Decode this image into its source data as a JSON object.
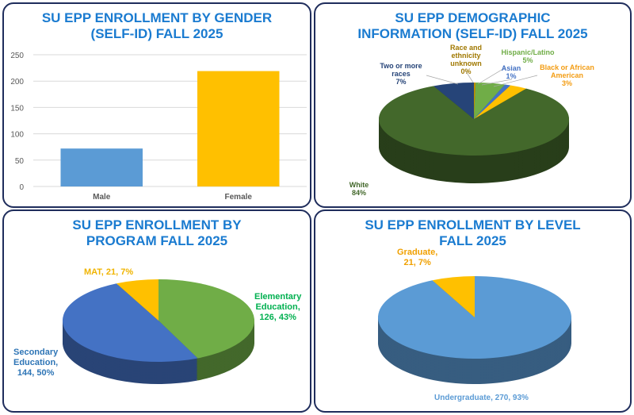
{
  "chart_data": [
    {
      "type": "bar",
      "title": "SU EPP ENROLLMENT BY GENDER (SELF-ID) FALL 2025",
      "categories": [
        "Male",
        "Female"
      ],
      "values": [
        72,
        219
      ],
      "ylim": [
        0,
        250
      ],
      "yticks": [
        "0",
        "50",
        "100",
        "150",
        "200",
        "250"
      ],
      "colors": [
        "#5b9bd5",
        "#ffc000"
      ],
      "grid": true
    },
    {
      "type": "pie",
      "title": "SU EPP DEMOGRAPHIC INFORMATION (SELF-ID) FALL 2025",
      "slices": [
        {
          "name": "Race and ethnicity unknown",
          "pct": "0%",
          "value": 0.3,
          "color": "#bf8f00"
        },
        {
          "name": "Hispanic/Latino",
          "pct": "5%",
          "value": 5,
          "color": "#70ad47"
        },
        {
          "name": "Asian",
          "pct": "1%",
          "value": 1,
          "color": "#4472c4"
        },
        {
          "name": "Black or African American",
          "pct": "3%",
          "value": 3,
          "color": "#ffc000"
        },
        {
          "name": "White",
          "pct": "84%",
          "value": 84,
          "color": "#43682b"
        },
        {
          "name": "Two or more races",
          "pct": "7%",
          "value": 7,
          "color": "#264478"
        }
      ]
    },
    {
      "type": "pie",
      "title": "SU EPP ENROLLMENT BY PROGRAM  FALL 2025",
      "slices": [
        {
          "name": "Elementary Education",
          "label": "Elementary Education, 126, 43%",
          "value": 126,
          "color": "#70ad47"
        },
        {
          "name": "Secondary Education",
          "label": "Secondary Education, 144, 50%",
          "value": 144,
          "color": "#4472c4"
        },
        {
          "name": "MAT",
          "label": "MAT, 21, 7%",
          "value": 21,
          "color": "#ffc000"
        }
      ]
    },
    {
      "type": "pie",
      "title": "SU EPP ENROLLMENT BY LEVEL FALL 2025",
      "slices": [
        {
          "name": "Undergraduate",
          "label": "Undergraduate, 270, 93%",
          "value": 270,
          "color": "#5b9bd5"
        },
        {
          "name": "Graduate",
          "label": "Graduate, 21, 7%",
          "value": 21,
          "color": "#ffc000"
        }
      ]
    }
  ],
  "titles": {
    "gender_l1": "SU EPP ENROLLMENT BY GENDER",
    "gender_l2": "(SELF-ID) FALL 2025",
    "demo_l1": "SU EPP DEMOGRAPHIC",
    "demo_l2": "INFORMATION (SELF-ID) FALL 2025",
    "prog_l1": "SU EPP ENROLLMENT BY",
    "prog_l2": "PROGRAM  FALL 2025",
    "level_l1": "SU EPP ENROLLMENT BY LEVEL",
    "level_l2": "FALL 2025"
  },
  "labels": {
    "unknown": [
      "Race and",
      "ethnicity",
      "unknown",
      "0%"
    ],
    "hispanic": [
      "Hispanic/Latino",
      "5%"
    ],
    "asian": [
      "Asian",
      "1%"
    ],
    "black": [
      "Black or African",
      "American",
      "3%"
    ],
    "two": [
      "Two or more",
      "races",
      "7%"
    ],
    "white": [
      "White",
      "84%"
    ],
    "mat": "MAT, 21, 7%",
    "elem": [
      "Elementary",
      "Education,",
      "126, 43%"
    ],
    "sec": [
      "Secondary",
      "Education,",
      "144, 50%"
    ],
    "grad": [
      "Graduate,",
      "21, 7%"
    ],
    "under": "Undergraduate, 270, 93%"
  }
}
